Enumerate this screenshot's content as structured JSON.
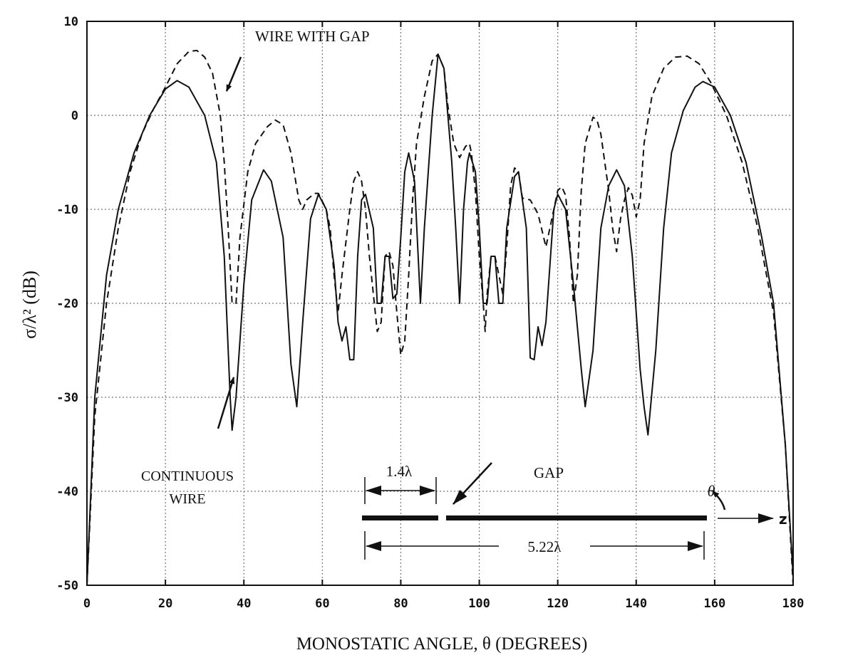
{
  "chart_data": {
    "type": "line",
    "title": "",
    "xlabel": "MONOSTATIC ANGLE, θ (DEGREES)",
    "ylabel": "σ/λ² (dB)",
    "xlim": [
      0,
      180
    ],
    "ylim": [
      -50,
      10
    ],
    "xticks": [
      0,
      20,
      40,
      60,
      80,
      100,
      120,
      140,
      160,
      180
    ],
    "yticks": [
      10,
      0,
      -10,
      -20,
      -30,
      -40,
      -50
    ],
    "xtick_labels": [
      "0",
      "20",
      "40",
      "60",
      "80",
      "100",
      "120",
      "140",
      "160",
      "180"
    ],
    "ytick_labels": [
      "10",
      "0",
      "-10",
      "-20",
      "-30",
      "-40",
      "-50"
    ],
    "grid": true,
    "series": [
      {
        "name": "CONTINUOUS WIRE",
        "style": "solid",
        "color": "#111111",
        "x": [
          0,
          2,
          5,
          8,
          12,
          16,
          20,
          23,
          26,
          30,
          33,
          35,
          36.5,
          37,
          38,
          40,
          42,
          45,
          47,
          50,
          52,
          53.5,
          55,
          57,
          59,
          61,
          63,
          64,
          65,
          66,
          67,
          68,
          69,
          70,
          71,
          73,
          74,
          75,
          76,
          77,
          78,
          79,
          80,
          81,
          82,
          83.5,
          85,
          86,
          88,
          89.5,
          91,
          93,
          94,
          95,
          96,
          97,
          97.5,
          99,
          100,
          101,
          102,
          103,
          104,
          105,
          106,
          107,
          109,
          110,
          112,
          113,
          114,
          115,
          116,
          117,
          119,
          120,
          122,
          124,
          126,
          127,
          129,
          131,
          133,
          135,
          137,
          139,
          141,
          142,
          143,
          145,
          147,
          149,
          152,
          155,
          157,
          160,
          164,
          168,
          172,
          175,
          178,
          180
        ],
        "y": [
          -50,
          -30,
          -17,
          -10,
          -4,
          0,
          2.8,
          3.7,
          3,
          0,
          -5,
          -15,
          -30,
          -33.5,
          -30,
          -18,
          -9,
          -5.8,
          -7,
          -13,
          -26.5,
          -31,
          -22,
          -11,
          -8.4,
          -10,
          -16,
          -22,
          -24,
          -22.5,
          -26,
          -26,
          -15,
          -9,
          -8.4,
          -12,
          -20,
          -20,
          -15,
          -15,
          -19.5,
          -19,
          -13,
          -6,
          -4,
          -7,
          -20,
          -12,
          0,
          6.5,
          5,
          -5,
          -12,
          -20,
          -10,
          -5,
          -4,
          -6,
          -12,
          -20,
          -20,
          -15,
          -15,
          -20,
          -20,
          -12,
          -6.5,
          -6,
          -12,
          -25.8,
          -26,
          -22.5,
          -24.5,
          -22,
          -10,
          -8.4,
          -10,
          -18,
          -27,
          -31,
          -25,
          -12,
          -7.5,
          -5.8,
          -7.5,
          -15,
          -27,
          -31,
          -34,
          -25,
          -12,
          -4,
          0.5,
          3,
          3.6,
          3,
          0,
          -5,
          -13,
          -20,
          -35,
          -49
        ]
      },
      {
        "name": "WIRE WITH GAP",
        "style": "dashed",
        "color": "#111111",
        "x": [
          0,
          2,
          5,
          8,
          11,
          14,
          17,
          20,
          23,
          26,
          28,
          30,
          32,
          34,
          35,
          36,
          37,
          38,
          39,
          41,
          43,
          46,
          48,
          50,
          52,
          54,
          55,
          56,
          58,
          59,
          61,
          62,
          63,
          64,
          65,
          67,
          68,
          69,
          70,
          71,
          72,
          73,
          74,
          75,
          76,
          77,
          78,
          79,
          80,
          81,
          82,
          83,
          84,
          86,
          88,
          89.5,
          91,
          92,
          93.5,
          95,
          96.5,
          97.5,
          98,
          99,
          100,
          101,
          101.5,
          102,
          103,
          104,
          105,
          106,
          107,
          108,
          109,
          110,
          111,
          113,
          115,
          117,
          119,
          120,
          121,
          122,
          123,
          124,
          125,
          126,
          127,
          129,
          130,
          131,
          133,
          134,
          135,
          136,
          137,
          138,
          139,
          140,
          141,
          142,
          144,
          147,
          150,
          153,
          156,
          159,
          163,
          167,
          171,
          175,
          178,
          180
        ],
        "y": [
          -50,
          -32,
          -20,
          -12,
          -6,
          -2,
          0.7,
          3,
          5.5,
          6.8,
          6.9,
          6.2,
          4.5,
          0,
          -5,
          -12,
          -20,
          -20,
          -13,
          -6,
          -3,
          -1.2,
          -0.5,
          -1,
          -4,
          -9,
          -10,
          -9,
          -8.3,
          -8.3,
          -10,
          -12,
          -17,
          -21,
          -17,
          -10,
          -7,
          -6,
          -7,
          -10,
          -15,
          -19,
          -23,
          -22,
          -15,
          -14.5,
          -16,
          -21,
          -25.5,
          -24,
          -17,
          -9,
          -3,
          2,
          5.8,
          6.5,
          5,
          1,
          -3,
          -4.5,
          -3.3,
          -3,
          -4,
          -8,
          -15,
          -20,
          -23,
          -19,
          -15,
          -15,
          -17,
          -19,
          -14,
          -7.5,
          -5.6,
          -6,
          -8.8,
          -9,
          -10.5,
          -14,
          -10,
          -8,
          -7.6,
          -8.5,
          -13,
          -20,
          -17,
          -8,
          -3,
          -0.2,
          -0.5,
          -2,
          -8,
          -12,
          -14.5,
          -11,
          -9,
          -7.7,
          -8.5,
          -10.8,
          -9,
          -3,
          2,
          5,
          6.2,
          6.3,
          5.5,
          3.5,
          0,
          -5,
          -12,
          -21,
          -35,
          -50
        ]
      }
    ],
    "annotations": {
      "gap_series_label": "WIRE WITH GAP",
      "continuous_label_line1": "CONTINUOUS",
      "continuous_label_line2": "WIRE",
      "inset_segment_length": "1.4λ",
      "inset_gap_label": "GAP",
      "inset_total_length": "5.22λ",
      "inset_angle_label": "θ",
      "inset_axis_label": "z"
    }
  }
}
